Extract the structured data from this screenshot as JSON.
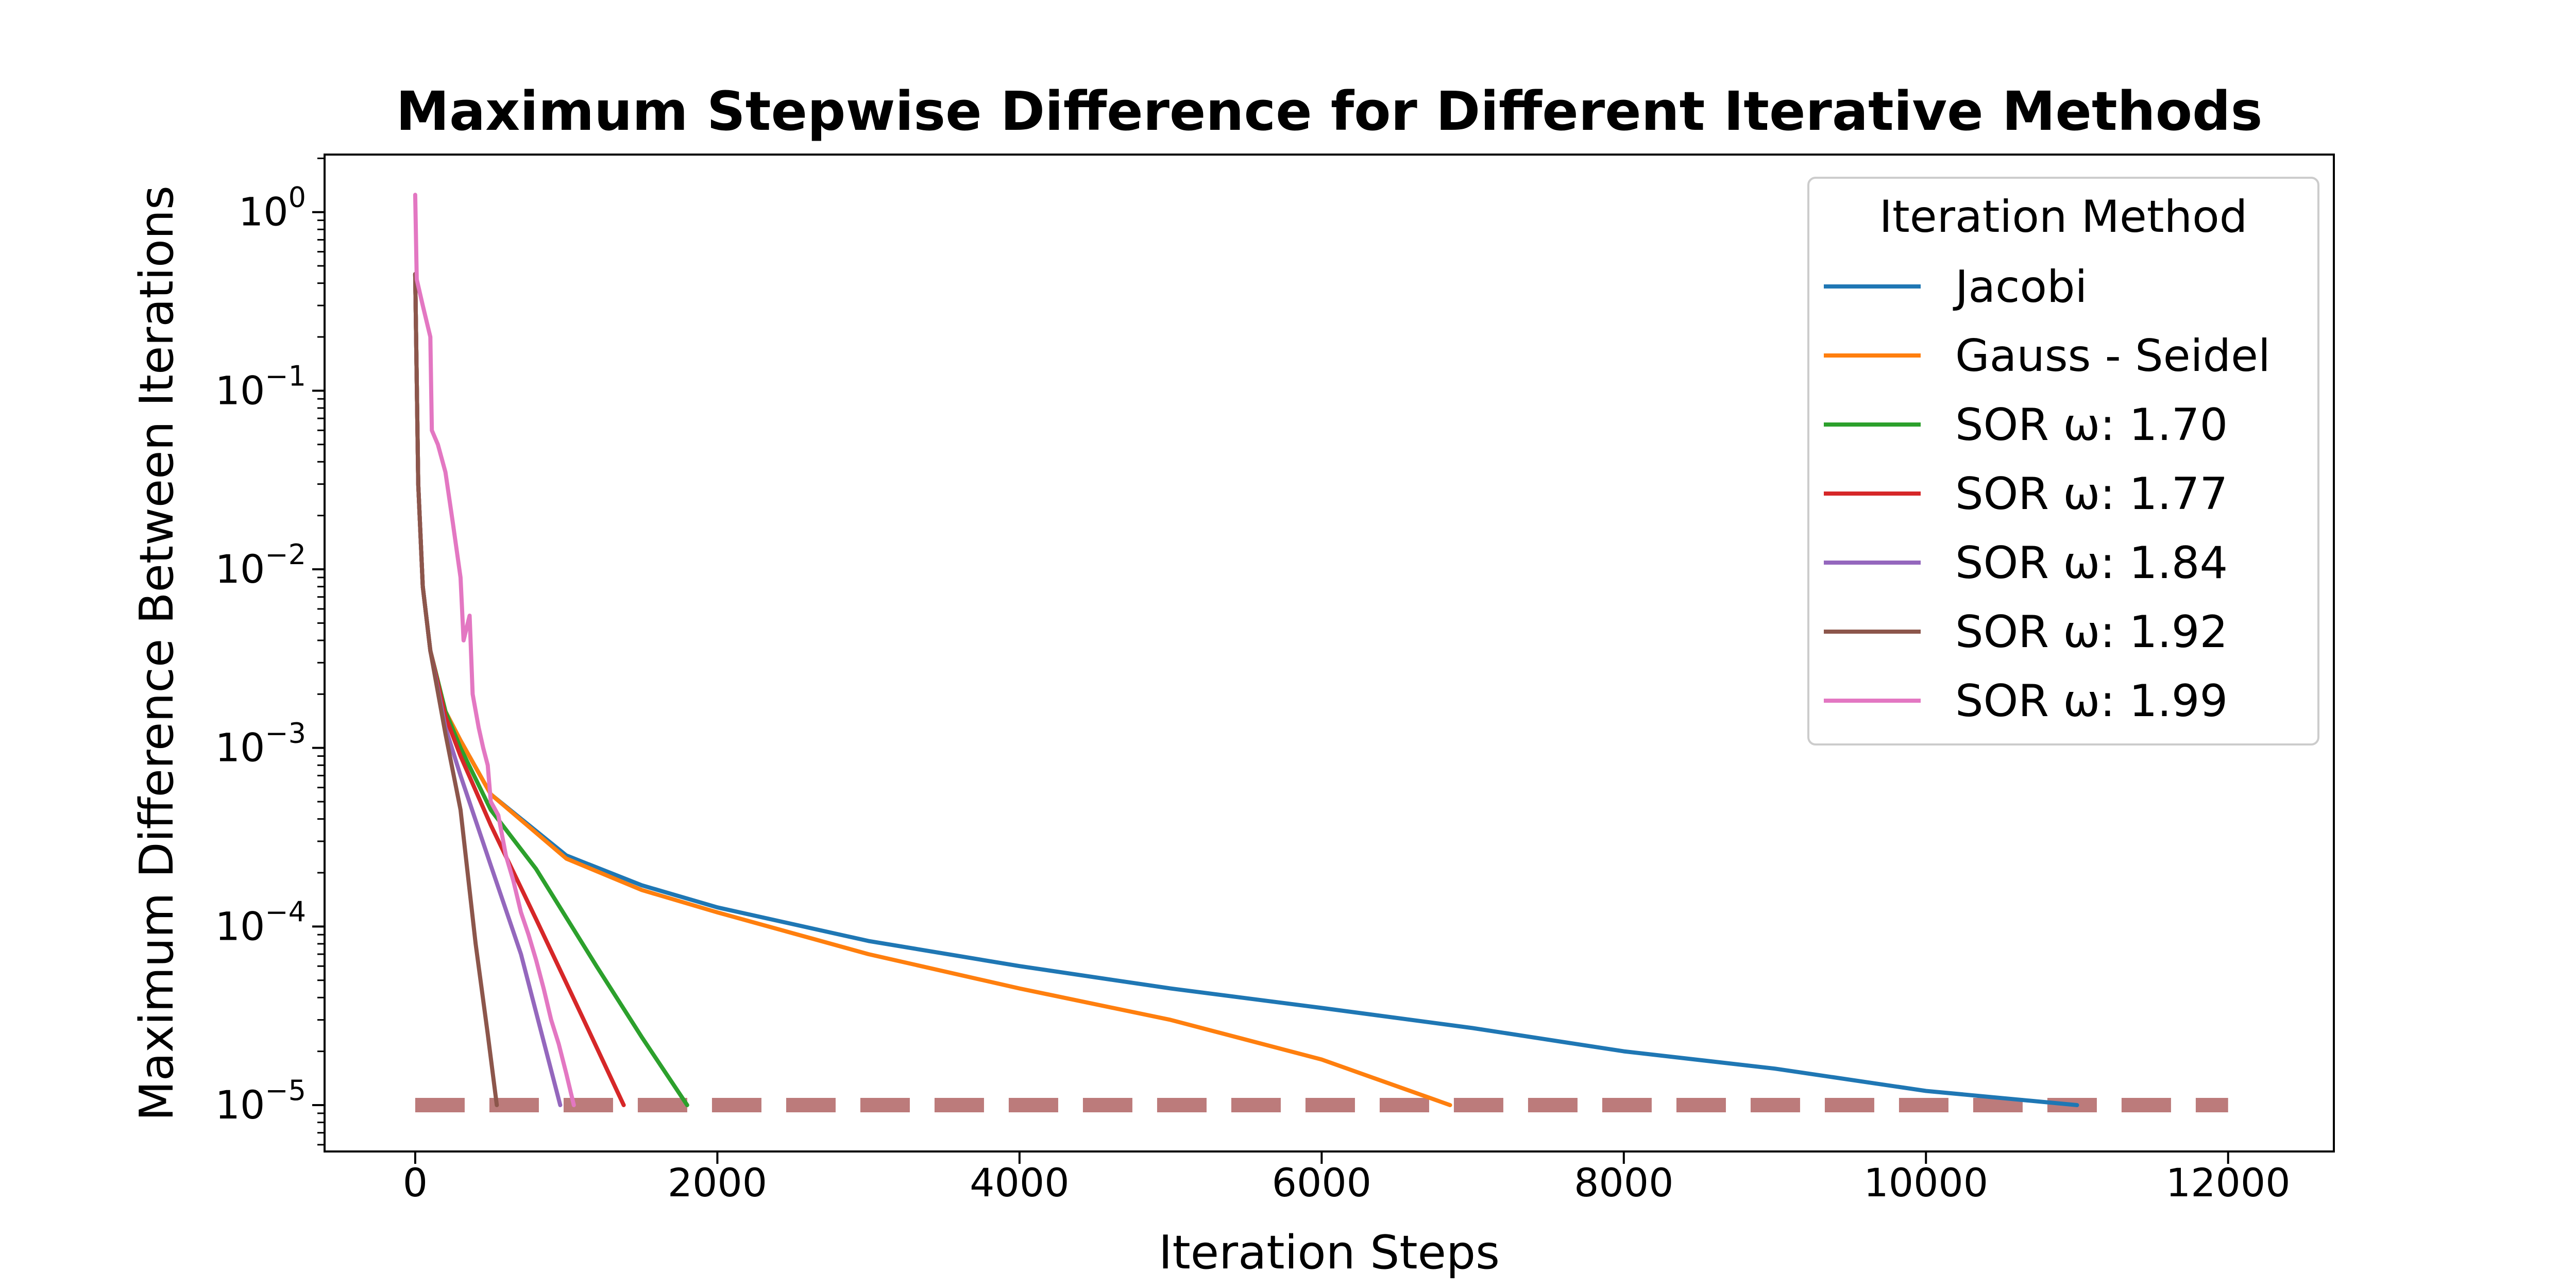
{
  "chart_data": {
    "type": "line",
    "title": "Maximum Stepwise Difference for Different Iterative Methods",
    "xlabel": "Iteration Steps",
    "ylabel": "Maximum Difference Between Iterations",
    "y_scale": "log",
    "xlim": [
      -600,
      12700
    ],
    "ylim": [
      5.5e-06,
      2.1
    ],
    "x_ticks": [
      0,
      2000,
      4000,
      6000,
      8000,
      10000,
      12000
    ],
    "x_tick_labels": [
      "0",
      "2000",
      "4000",
      "6000",
      "8000",
      "10000",
      "12000"
    ],
    "y_ticks": [
      1,
      0.1,
      0.01,
      0.001,
      0.0001,
      1e-05
    ],
    "y_tick_bases": [
      "10",
      "10",
      "10",
      "10",
      "10",
      "10"
    ],
    "y_tick_exponents": [
      "0",
      "−1",
      "−2",
      "−3",
      "−4",
      "−5"
    ],
    "grid": false,
    "legend": {
      "title": "Iteration Method",
      "placement": "upper-right"
    },
    "threshold": {
      "value": 1e-05,
      "x_range": [
        0,
        12000
      ],
      "color": "#bc7b7b",
      "style": "dashed"
    },
    "series": [
      {
        "name": "Jacobi",
        "color": "#1f77b4",
        "points": [
          [
            0,
            0.45
          ],
          [
            20,
            0.03
          ],
          [
            50,
            0.008
          ],
          [
            100,
            0.0035
          ],
          [
            200,
            0.0016
          ],
          [
            300,
            0.0011
          ],
          [
            500,
            0.00055
          ],
          [
            1000,
            0.00025
          ],
          [
            1500,
            0.00017
          ],
          [
            2000,
            0.000128
          ],
          [
            3000,
            8.3e-05
          ],
          [
            4000,
            6e-05
          ],
          [
            5000,
            4.5e-05
          ],
          [
            6000,
            3.5e-05
          ],
          [
            7000,
            2.7e-05
          ],
          [
            8000,
            2e-05
          ],
          [
            9000,
            1.6e-05
          ],
          [
            10000,
            1.2e-05
          ],
          [
            11000,
            1e-05
          ]
        ]
      },
      {
        "name": "Gauss - Seidel",
        "color": "#ff7f0e",
        "points": [
          [
            0,
            0.45
          ],
          [
            20,
            0.03
          ],
          [
            50,
            0.008
          ],
          [
            100,
            0.0035
          ],
          [
            200,
            0.0016
          ],
          [
            300,
            0.0011
          ],
          [
            500,
            0.00055
          ],
          [
            1000,
            0.00024
          ],
          [
            1500,
            0.00016
          ],
          [
            2000,
            0.00012
          ],
          [
            3000,
            7e-05
          ],
          [
            4000,
            4.5e-05
          ],
          [
            5000,
            3e-05
          ],
          [
            6000,
            1.8e-05
          ],
          [
            6850,
            1e-05
          ]
        ]
      },
      {
        "name": "SOR ω: 1.70",
        "color": "#2ca02c",
        "points": [
          [
            0,
            0.45
          ],
          [
            20,
            0.03
          ],
          [
            50,
            0.008
          ],
          [
            100,
            0.0035
          ],
          [
            200,
            0.0016
          ],
          [
            300,
            0.001
          ],
          [
            500,
            0.00045
          ],
          [
            800,
            0.00021
          ],
          [
            1200,
            6e-05
          ],
          [
            1500,
            2.4e-05
          ],
          [
            1800,
            1e-05
          ]
        ]
      },
      {
        "name": "SOR ω: 1.77",
        "color": "#d62728",
        "points": [
          [
            0,
            0.45
          ],
          [
            20,
            0.03
          ],
          [
            50,
            0.008
          ],
          [
            100,
            0.0035
          ],
          [
            200,
            0.0015
          ],
          [
            300,
            0.0009
          ],
          [
            500,
            0.00037
          ],
          [
            800,
            0.00011
          ],
          [
            1100,
            3.2e-05
          ],
          [
            1380,
            1e-05
          ]
        ]
      },
      {
        "name": "SOR ω: 1.84",
        "color": "#9467bd",
        "points": [
          [
            0,
            0.45
          ],
          [
            20,
            0.03
          ],
          [
            50,
            0.008
          ],
          [
            100,
            0.0035
          ],
          [
            200,
            0.0013
          ],
          [
            300,
            0.0007
          ],
          [
            500,
            0.00022
          ],
          [
            700,
            7e-05
          ],
          [
            960,
            1e-05
          ]
        ]
      },
      {
        "name": "SOR ω: 1.92",
        "color": "#8c564b",
        "points": [
          [
            0,
            0.45
          ],
          [
            20,
            0.03
          ],
          [
            50,
            0.008
          ],
          [
            100,
            0.0035
          ],
          [
            200,
            0.0012
          ],
          [
            300,
            0.00045
          ],
          [
            400,
            8e-05
          ],
          [
            480,
            2.5e-05
          ],
          [
            540,
            1e-05
          ]
        ]
      },
      {
        "name": "SOR ω: 1.99",
        "color": "#e377c2",
        "points": [
          [
            0,
            1.25
          ],
          [
            10,
            0.42
          ],
          [
            50,
            0.3
          ],
          [
            100,
            0.2
          ],
          [
            110,
            0.06
          ],
          [
            150,
            0.05
          ],
          [
            200,
            0.035
          ],
          [
            250,
            0.018
          ],
          [
            300,
            0.009
          ],
          [
            320,
            0.004
          ],
          [
            360,
            0.0055
          ],
          [
            380,
            0.002
          ],
          [
            420,
            0.0013
          ],
          [
            450,
            0.001
          ],
          [
            480,
            0.0008
          ],
          [
            500,
            0.0005
          ],
          [
            550,
            0.00042
          ],
          [
            600,
            0.00025
          ],
          [
            650,
            0.00018
          ],
          [
            700,
            0.00012
          ],
          [
            750,
            9e-05
          ],
          [
            800,
            6.5e-05
          ],
          [
            850,
            4.5e-05
          ],
          [
            900,
            3e-05
          ],
          [
            950,
            2.2e-05
          ],
          [
            1000,
            1.5e-05
          ],
          [
            1050,
            1e-05
          ]
        ]
      }
    ]
  }
}
